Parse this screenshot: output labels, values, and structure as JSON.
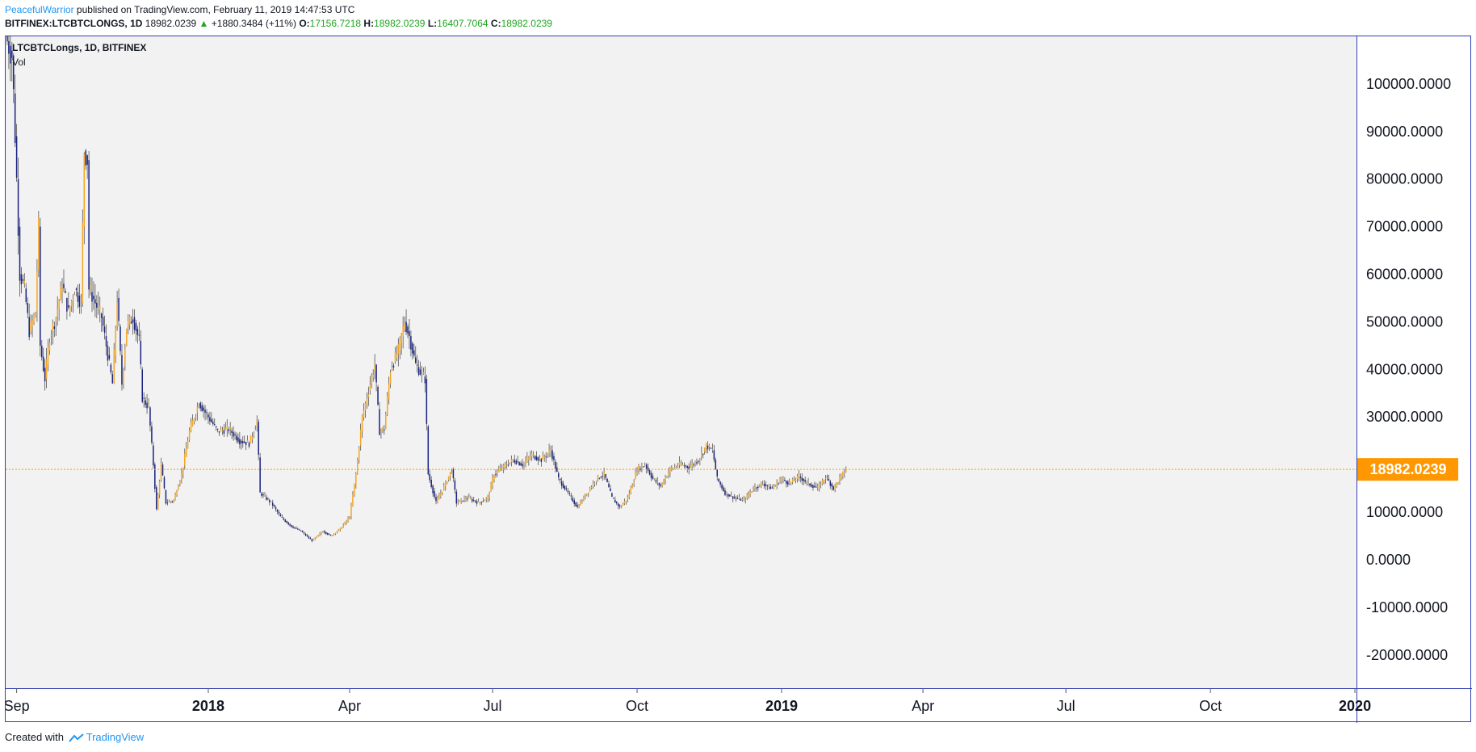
{
  "header": {
    "author": "PeacefulWarrior",
    "published_text": " published on TradingView.com, February 11, 2019 14:47:53 UTC",
    "symbol_line": "BITFINEX:LTCBTCLONGS, 1D",
    "last": "18982.0239",
    "change_arrow": "▲",
    "change": "+1880.3484 (+11%)",
    "o_label": "O:",
    "o_value": "17156.7218",
    "h_label": "H:",
    "h_value": "18982.0239",
    "l_label": "L:",
    "l_value": "16407.7064",
    "c_label": "C:",
    "c_value": "18982.0239"
  },
  "legend": {
    "symbol": "LTCBTCLongs, 1D, BITFINEX",
    "vol": "Vol"
  },
  "footer": {
    "created_with": "Created with",
    "brand": "TradingView"
  },
  "colors": {
    "up": "#f5a623",
    "down": "#1a237e",
    "price_line": "#ff9800",
    "axis_border": "#3340b3",
    "plot_bg": "#f2f2f2"
  },
  "chart_data": {
    "type": "candlestick",
    "title": "LTCBTCLongs, 1D, BITFINEX",
    "ylim": [
      -27000,
      110000
    ],
    "y_ticks": [
      "100000.0000",
      "90000.0000",
      "80000.0000",
      "70000.0000",
      "60000.0000",
      "50000.0000",
      "40000.0000",
      "30000.0000",
      "20000.0000",
      "10000.0000",
      "0.0000",
      "-10000.0000",
      "-20000.0000"
    ],
    "y_tick_values": [
      100000,
      90000,
      80000,
      70000,
      60000,
      50000,
      40000,
      30000,
      20000,
      10000,
      0,
      -10000,
      -20000
    ],
    "x_range": [
      "2017-08-25",
      "2020-01-02"
    ],
    "x_ticks": [
      {
        "label": "Sep",
        "date": "2017-09-01",
        "bold": false
      },
      {
        "label": "2018",
        "date": "2018-01-01",
        "bold": true
      },
      {
        "label": "Apr",
        "date": "2018-04-01",
        "bold": false
      },
      {
        "label": "Jul",
        "date": "2018-07-01",
        "bold": false
      },
      {
        "label": "Oct",
        "date": "2018-10-01",
        "bold": false
      },
      {
        "label": "2019",
        "date": "2019-01-01",
        "bold": true
      },
      {
        "label": "Apr",
        "date": "2019-04-01",
        "bold": false
      },
      {
        "label": "Jul",
        "date": "2019-07-01",
        "bold": false
      },
      {
        "label": "Oct",
        "date": "2019-10-01",
        "bold": false
      },
      {
        "label": "2020",
        "date": "2020-01-01",
        "bold": true
      }
    ],
    "last_price": 18982.0239,
    "last_price_label": "18982.0239",
    "close_path": [
      {
        "date": "2017-08-25",
        "close": 110000
      },
      {
        "date": "2017-08-29",
        "close": 106000
      },
      {
        "date": "2017-08-30",
        "close": 98000
      },
      {
        "date": "2017-09-01",
        "close": 80000
      },
      {
        "date": "2017-09-03",
        "close": 60000
      },
      {
        "date": "2017-09-06",
        "close": 57000
      },
      {
        "date": "2017-09-09",
        "close": 48000
      },
      {
        "date": "2017-09-13",
        "close": 52000
      },
      {
        "date": "2017-09-15",
        "close": 70000
      },
      {
        "date": "2017-09-16",
        "close": 45000
      },
      {
        "date": "2017-09-19",
        "close": 38000
      },
      {
        "date": "2017-09-22",
        "close": 47000
      },
      {
        "date": "2017-09-26",
        "close": 51000
      },
      {
        "date": "2017-09-30",
        "close": 58000
      },
      {
        "date": "2017-10-04",
        "close": 52000
      },
      {
        "date": "2017-10-08",
        "close": 57000
      },
      {
        "date": "2017-10-12",
        "close": 54000
      },
      {
        "date": "2017-10-14",
        "close": 86000
      },
      {
        "date": "2017-10-16",
        "close": 84000
      },
      {
        "date": "2017-10-17",
        "close": 57000
      },
      {
        "date": "2017-10-21",
        "close": 54000
      },
      {
        "date": "2017-10-25",
        "close": 51000
      },
      {
        "date": "2017-10-29",
        "close": 43000
      },
      {
        "date": "2017-11-01",
        "close": 37000
      },
      {
        "date": "2017-11-04",
        "close": 55000
      },
      {
        "date": "2017-11-07",
        "close": 37000
      },
      {
        "date": "2017-11-10",
        "close": 49000
      },
      {
        "date": "2017-11-14",
        "close": 51000
      },
      {
        "date": "2017-11-18",
        "close": 46000
      },
      {
        "date": "2017-11-20",
        "close": 34000
      },
      {
        "date": "2017-11-24",
        "close": 32000
      },
      {
        "date": "2017-11-27",
        "close": 20000
      },
      {
        "date": "2017-11-29",
        "close": 10500
      },
      {
        "date": "2017-12-02",
        "close": 20000
      },
      {
        "date": "2017-12-05",
        "close": 12000
      },
      {
        "date": "2017-12-10",
        "close": 12500
      },
      {
        "date": "2017-12-15",
        "close": 18000
      },
      {
        "date": "2017-12-20",
        "close": 27000
      },
      {
        "date": "2017-12-26",
        "close": 33000
      },
      {
        "date": "2018-01-01",
        "close": 30000
      },
      {
        "date": "2018-01-07",
        "close": 27000
      },
      {
        "date": "2018-01-14",
        "close": 27500
      },
      {
        "date": "2018-01-21",
        "close": 25000
      },
      {
        "date": "2018-01-27",
        "close": 24500
      },
      {
        "date": "2018-02-01",
        "close": 29000
      },
      {
        "date": "2018-02-03",
        "close": 14000
      },
      {
        "date": "2018-02-10",
        "close": 12000
      },
      {
        "date": "2018-02-16",
        "close": 9000
      },
      {
        "date": "2018-02-23",
        "close": 7000
      },
      {
        "date": "2018-03-01",
        "close": 6000
      },
      {
        "date": "2018-03-08",
        "close": 4000
      },
      {
        "date": "2018-03-15",
        "close": 6000
      },
      {
        "date": "2018-03-20",
        "close": 5000
      },
      {
        "date": "2018-03-26",
        "close": 6500
      },
      {
        "date": "2018-04-01",
        "close": 9000
      },
      {
        "date": "2018-04-05",
        "close": 18000
      },
      {
        "date": "2018-04-09",
        "close": 30000
      },
      {
        "date": "2018-04-14",
        "close": 37000
      },
      {
        "date": "2018-04-17",
        "close": 41000
      },
      {
        "date": "2018-04-20",
        "close": 27000
      },
      {
        "date": "2018-04-23",
        "close": 27500
      },
      {
        "date": "2018-04-27",
        "close": 40000
      },
      {
        "date": "2018-05-02",
        "close": 44000
      },
      {
        "date": "2018-05-06",
        "close": 50000
      },
      {
        "date": "2018-05-09",
        "close": 47000
      },
      {
        "date": "2018-05-13",
        "close": 41000
      },
      {
        "date": "2018-05-19",
        "close": 38000
      },
      {
        "date": "2018-05-21",
        "close": 18000
      },
      {
        "date": "2018-05-26",
        "close": 12000
      },
      {
        "date": "2018-06-01",
        "close": 16000
      },
      {
        "date": "2018-06-05",
        "close": 19000
      },
      {
        "date": "2018-06-08",
        "close": 12000
      },
      {
        "date": "2018-06-15",
        "close": 13000
      },
      {
        "date": "2018-06-22",
        "close": 12000
      },
      {
        "date": "2018-06-28",
        "close": 13000
      },
      {
        "date": "2018-07-02",
        "close": 18000
      },
      {
        "date": "2018-07-08",
        "close": 19500
      },
      {
        "date": "2018-07-14",
        "close": 21000
      },
      {
        "date": "2018-07-20",
        "close": 20000
      },
      {
        "date": "2018-07-26",
        "close": 22000
      },
      {
        "date": "2018-08-01",
        "close": 21000
      },
      {
        "date": "2018-08-07",
        "close": 23000
      },
      {
        "date": "2018-08-12",
        "close": 17000
      },
      {
        "date": "2018-08-18",
        "close": 14000
      },
      {
        "date": "2018-08-24",
        "close": 11000
      },
      {
        "date": "2018-08-30",
        "close": 14000
      },
      {
        "date": "2018-09-05",
        "close": 17000
      },
      {
        "date": "2018-09-10",
        "close": 18000
      },
      {
        "date": "2018-09-15",
        "close": 13000
      },
      {
        "date": "2018-09-20",
        "close": 11000
      },
      {
        "date": "2018-09-25",
        "close": 13000
      },
      {
        "date": "2018-10-01",
        "close": 19000
      },
      {
        "date": "2018-10-06",
        "close": 20000
      },
      {
        "date": "2018-10-11",
        "close": 17000
      },
      {
        "date": "2018-10-16",
        "close": 15500
      },
      {
        "date": "2018-10-22",
        "close": 19000
      },
      {
        "date": "2018-10-28",
        "close": 20000
      },
      {
        "date": "2018-11-03",
        "close": 19500
      },
      {
        "date": "2018-11-09",
        "close": 21000
      },
      {
        "date": "2018-11-14",
        "close": 24000
      },
      {
        "date": "2018-11-18",
        "close": 23000
      },
      {
        "date": "2018-11-21",
        "close": 17000
      },
      {
        "date": "2018-11-26",
        "close": 14000
      },
      {
        "date": "2018-12-02",
        "close": 13000
      },
      {
        "date": "2018-12-08",
        "close": 12500
      },
      {
        "date": "2018-12-14",
        "close": 15000
      },
      {
        "date": "2018-12-20",
        "close": 16000
      },
      {
        "date": "2018-12-26",
        "close": 15000
      },
      {
        "date": "2019-01-01",
        "close": 17000
      },
      {
        "date": "2019-01-06",
        "close": 16000
      },
      {
        "date": "2019-01-12",
        "close": 17500
      },
      {
        "date": "2019-01-18",
        "close": 16000
      },
      {
        "date": "2019-01-24",
        "close": 15000
      },
      {
        "date": "2019-01-29",
        "close": 17500
      },
      {
        "date": "2019-02-03",
        "close": 15000
      },
      {
        "date": "2019-02-07",
        "close": 17100
      },
      {
        "date": "2019-02-11",
        "close": 18982
      }
    ]
  }
}
